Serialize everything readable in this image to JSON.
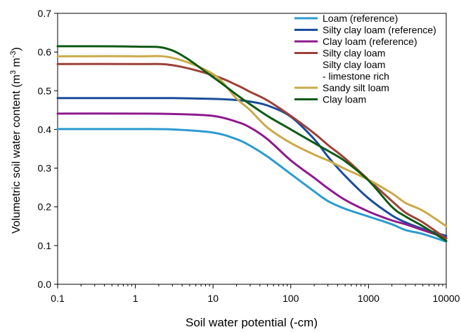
{
  "chart_data": {
    "type": "line",
    "title": "",
    "xlabel": "Soil water potential (-cm)",
    "ylabel": "Volumetric soil water content (m³ m⁻³)",
    "ylabel_parts": {
      "main": "Volumetric soil water content (m",
      "sup1": "3",
      "mid": " m",
      "sup2": "-3",
      "end": ")"
    },
    "x_scale": "log",
    "xlim": [
      0.1,
      10000
    ],
    "ylim": [
      0.0,
      0.7
    ],
    "x_ticks": [
      0.1,
      1,
      10,
      100,
      1000,
      10000
    ],
    "x_tick_labels": [
      "0.1",
      "1",
      "10",
      "100",
      "1000",
      "10000"
    ],
    "y_ticks": [
      0.0,
      0.1,
      0.2,
      0.3,
      0.4,
      0.5,
      0.6,
      0.7
    ],
    "y_tick_labels": [
      "0.0",
      "0.1",
      "0.2",
      "0.3",
      "0.4",
      "0.5",
      "0.6",
      "0.7"
    ],
    "grid": false,
    "legend_position": "top-right",
    "x": [
      0.1,
      1,
      3,
      10,
      20,
      30,
      50,
      100,
      200,
      300,
      500,
      1000,
      2000,
      3000,
      5000,
      10000
    ],
    "series": [
      {
        "name": "Loam (reference)",
        "color": "#2b9bd0",
        "values": [
          0.401,
          0.401,
          0.4,
          0.392,
          0.375,
          0.358,
          0.33,
          0.285,
          0.24,
          0.215,
          0.195,
          0.175,
          0.155,
          0.14,
          0.13,
          0.11
        ]
      },
      {
        "name": "Silty clay loam (reference)",
        "color": "#1a4d9c",
        "values": [
          0.481,
          0.481,
          0.481,
          0.479,
          0.476,
          0.472,
          0.462,
          0.433,
          0.375,
          0.33,
          0.28,
          0.222,
          0.178,
          0.16,
          0.143,
          0.125
        ]
      },
      {
        "name": "Clay loam (reference)",
        "color": "#8e1a8e",
        "values": [
          0.441,
          0.441,
          0.44,
          0.435,
          0.42,
          0.405,
          0.375,
          0.32,
          0.275,
          0.248,
          0.218,
          0.188,
          0.165,
          0.155,
          0.14,
          0.12
        ]
      },
      {
        "name": "Silty clay loam",
        "color": "#9c4038",
        "values": [
          0.569,
          0.569,
          0.566,
          0.54,
          0.515,
          0.497,
          0.475,
          0.435,
          0.39,
          0.36,
          0.325,
          0.27,
          0.215,
          0.185,
          0.16,
          0.118
        ]
      },
      {
        "name": "Silty clay loam\n- limestone rich",
        "color": "#ffffff",
        "values": null
      },
      {
        "name": "Sandy silt loam",
        "color": "#cba94a",
        "values": [
          0.589,
          0.589,
          0.585,
          0.543,
          0.48,
          0.45,
          0.405,
          0.365,
          0.335,
          0.32,
          0.298,
          0.27,
          0.235,
          0.21,
          0.19,
          0.15
        ]
      },
      {
        "name": "Clay loam",
        "color": "#0f5a14",
        "values": [
          0.615,
          0.614,
          0.604,
          0.535,
          0.49,
          0.465,
          0.435,
          0.4,
          0.365,
          0.345,
          0.318,
          0.268,
          0.2,
          0.175,
          0.15,
          0.112
        ]
      }
    ]
  }
}
